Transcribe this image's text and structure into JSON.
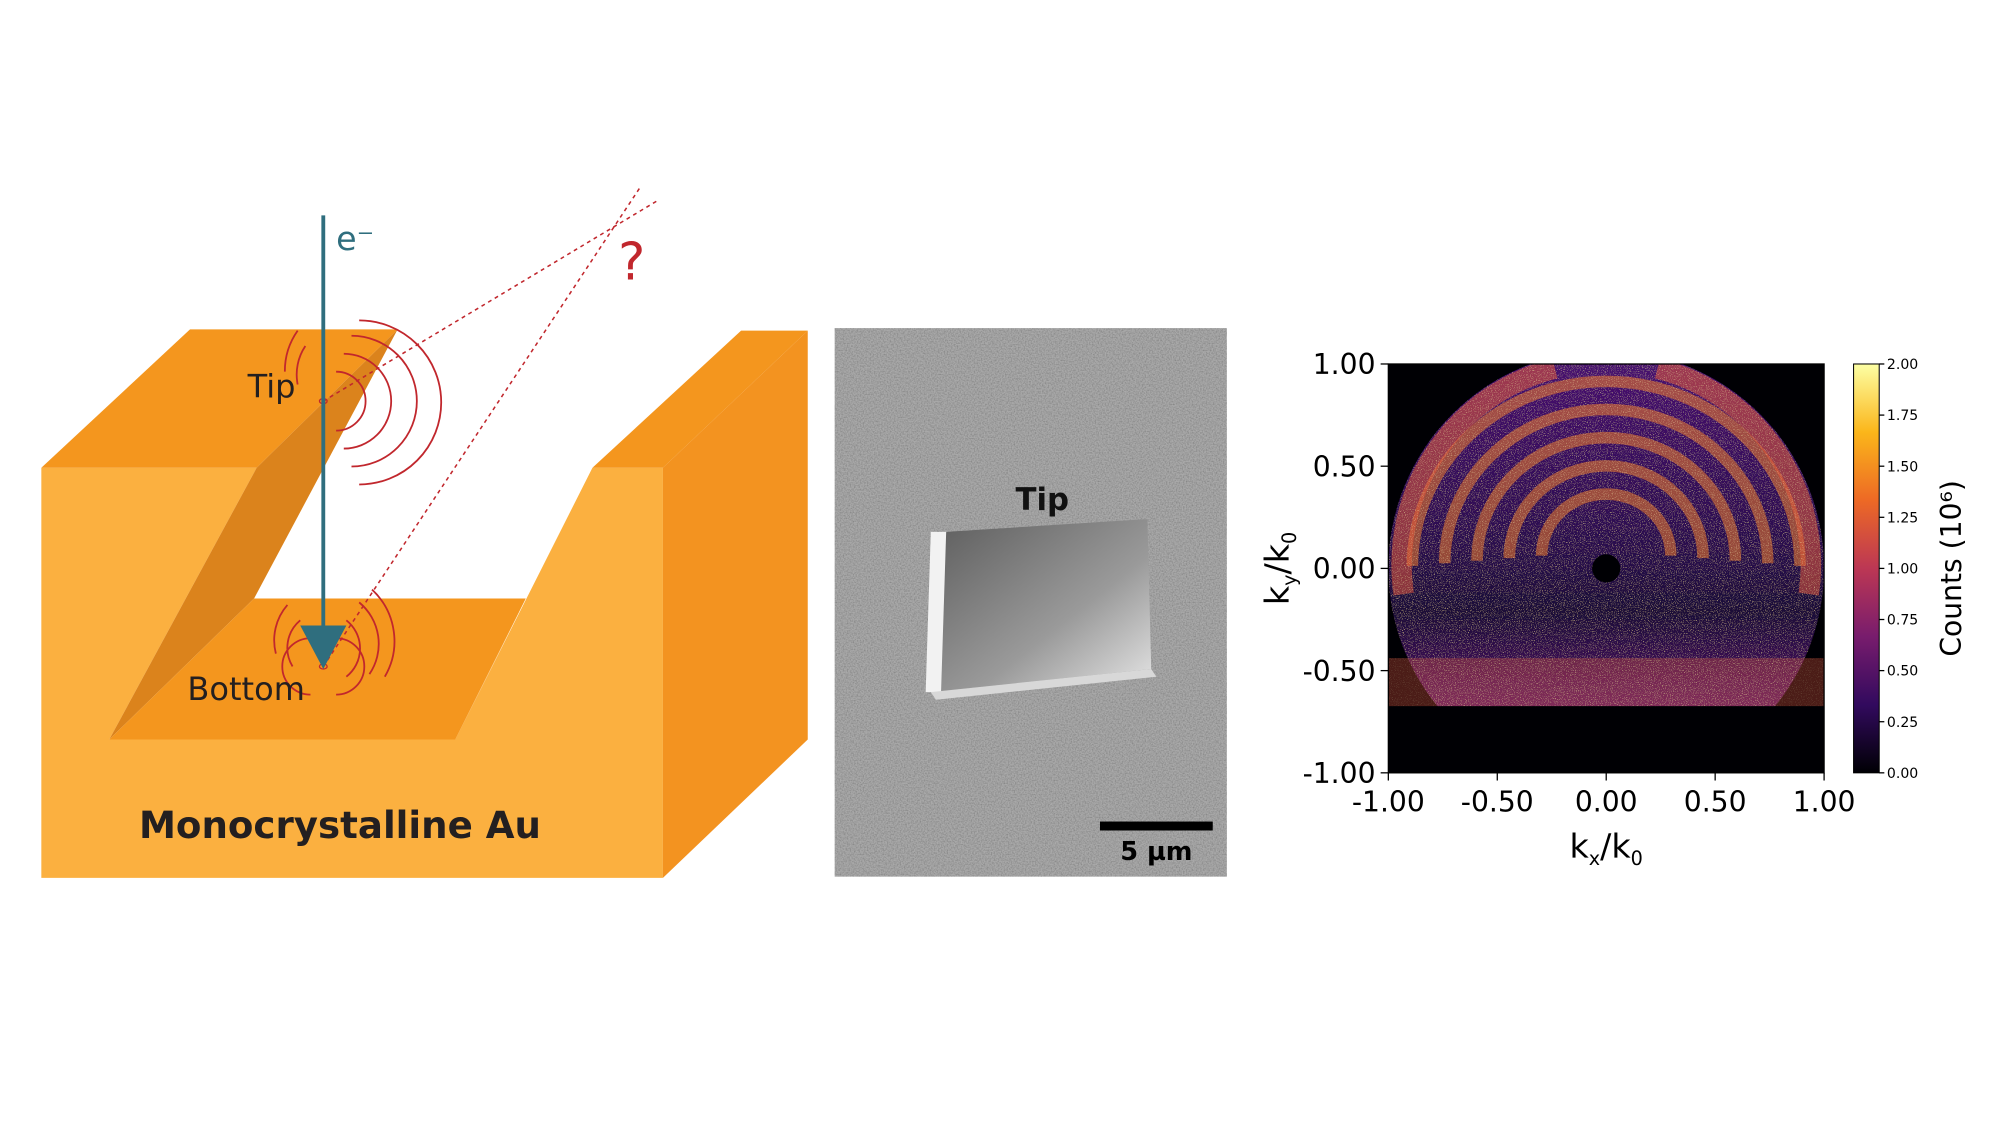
{
  "diagram": {
    "electron_label": "e⁻",
    "question_mark": "?",
    "tip_label": "Tip",
    "bottom_label": "Bottom",
    "material_label": "Monocrystalline Au"
  },
  "micrograph": {
    "tip_label": "Tip",
    "scale_bar_label": "5 µm"
  },
  "chart_data": {
    "type": "heatmap",
    "xlabel": [
      "k",
      "x",
      "/k",
      "0"
    ],
    "ylabel": [
      "k",
      "y",
      "/k",
      "0"
    ],
    "xlim": [
      -1,
      1
    ],
    "ylim": [
      -1,
      1
    ],
    "xticks": [
      {
        "value": -1,
        "label": "-1.00"
      },
      {
        "value": -0.5,
        "label": "-0.50"
      },
      {
        "value": 0,
        "label": "0.00"
      },
      {
        "value": 0.5,
        "label": "0.50"
      },
      {
        "value": 1,
        "label": "1.00"
      }
    ],
    "yticks": [
      {
        "value": -1,
        "label": "-1.00"
      },
      {
        "value": -0.5,
        "label": "-0.50"
      },
      {
        "value": 0,
        "label": "0.00"
      },
      {
        "value": 0.5,
        "label": "0.50"
      },
      {
        "value": 1,
        "label": "1.00"
      }
    ],
    "colorbar": {
      "label": "Counts (10⁶)",
      "colormap": "inferno",
      "lim": [
        0,
        2
      ],
      "ticks": [
        {
          "value": 0,
          "label": "0.00"
        },
        {
          "value": 0.25,
          "label": "0.25"
        },
        {
          "value": 0.5,
          "label": "0.50"
        },
        {
          "value": 0.75,
          "label": "0.75"
        },
        {
          "value": 1,
          "label": "1.00"
        },
        {
          "value": 1.25,
          "label": "1.25"
        },
        {
          "value": 1.5,
          "label": "1.50"
        },
        {
          "value": 1.75,
          "label": "1.75"
        },
        {
          "value": 2,
          "label": "2.00"
        }
      ]
    }
  }
}
